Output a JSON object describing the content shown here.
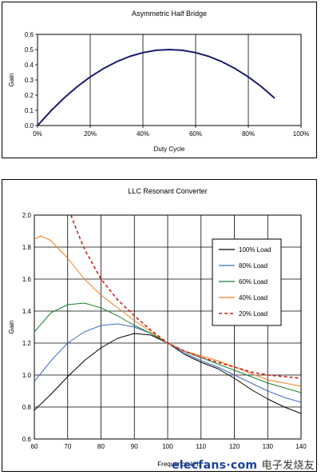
{
  "chart_data": [
    {
      "type": "line",
      "title": "Asymmetric Half Bridge",
      "xlabel": "Duty Cycle",
      "ylabel": "Gain",
      "xlim": [
        0,
        100
      ],
      "ylim": [
        0,
        0.6
      ],
      "x_ticks": [
        "0%",
        "20%",
        "40%",
        "60%",
        "80%",
        "100%"
      ],
      "y_ticks": [
        "0.0",
        "0.1",
        "0.2",
        "0.3",
        "0.4",
        "0.5",
        "0.6"
      ],
      "grid": "vertical",
      "series": [
        {
          "color": "#1a1a6e",
          "x": [
            0,
            5,
            10,
            15,
            20,
            25,
            30,
            35,
            40,
            45,
            50,
            55,
            60,
            65,
            70,
            75,
            80,
            85,
            90
          ],
          "y": [
            0,
            0.095,
            0.18,
            0.255,
            0.32,
            0.375,
            0.42,
            0.455,
            0.48,
            0.495,
            0.5,
            0.495,
            0.48,
            0.455,
            0.42,
            0.375,
            0.32,
            0.255,
            0.18
          ]
        }
      ]
    },
    {
      "type": "line",
      "title": "LLC Resonant Converter",
      "xlabel": "Frequency, kHz",
      "ylabel": "Gain",
      "xlim": [
        60,
        140
      ],
      "ylim": [
        0.6,
        2.0
      ],
      "x_ticks": [
        "60",
        "70",
        "80",
        "90",
        "100",
        "110",
        "120",
        "130",
        "140"
      ],
      "y_ticks": [
        "0.6",
        "0.8",
        "1.0",
        "1.2",
        "1.4",
        "1.6",
        "1.8",
        "2.0"
      ],
      "grid": "both",
      "legend_position": "right",
      "series": [
        {
          "name": "100% Load",
          "color": "#000000",
          "dash": "",
          "x": [
            60,
            65,
            70,
            75,
            80,
            85,
            90,
            95,
            100,
            105,
            110,
            115,
            120,
            125,
            130,
            135,
            140
          ],
          "y": [
            0.78,
            0.88,
            0.99,
            1.09,
            1.17,
            1.23,
            1.26,
            1.25,
            1.2,
            1.13,
            1.08,
            1.04,
            0.98,
            0.91,
            0.85,
            0.8,
            0.76
          ]
        },
        {
          "name": "80% Load",
          "color": "#3f6fc4",
          "dash": "",
          "x": [
            60,
            65,
            70,
            75,
            80,
            85,
            90,
            95,
            100,
            105,
            110,
            115,
            120,
            125,
            130,
            135,
            140
          ],
          "y": [
            0.96,
            1.09,
            1.2,
            1.27,
            1.31,
            1.32,
            1.3,
            1.26,
            1.2,
            1.14,
            1.09,
            1.05,
            1.0,
            0.95,
            0.9,
            0.86,
            0.83
          ]
        },
        {
          "name": "60% Load",
          "color": "#1f7f2f",
          "dash": "",
          "x": [
            60,
            65,
            70,
            75,
            80,
            85,
            90,
            95,
            100,
            105,
            110,
            115,
            120,
            125,
            130,
            135,
            140
          ],
          "y": [
            1.27,
            1.39,
            1.44,
            1.45,
            1.42,
            1.37,
            1.31,
            1.26,
            1.2,
            1.15,
            1.11,
            1.07,
            1.03,
            0.99,
            0.95,
            0.92,
            0.89
          ]
        },
        {
          "name": "40% Load",
          "color": "#f07f1a",
          "dash": "",
          "x": [
            60,
            62,
            65,
            70,
            75,
            80,
            85,
            90,
            95,
            100,
            105,
            110,
            115,
            120,
            125,
            130,
            135,
            140
          ],
          "y": [
            1.85,
            1.87,
            1.84,
            1.73,
            1.6,
            1.5,
            1.42,
            1.34,
            1.27,
            1.2,
            1.15,
            1.12,
            1.09,
            1.05,
            1.01,
            0.97,
            0.95,
            0.93
          ]
        },
        {
          "name": "20% Load",
          "color": "#cc1f1f",
          "dash": "4,3",
          "x": [
            71,
            73,
            75,
            80,
            85,
            90,
            95,
            100,
            105,
            110,
            115,
            120,
            125,
            130,
            135,
            140
          ],
          "y": [
            2.0,
            1.89,
            1.79,
            1.6,
            1.47,
            1.37,
            1.28,
            1.2,
            1.15,
            1.11,
            1.08,
            1.05,
            1.02,
            1.0,
            0.99,
            0.98
          ]
        }
      ]
    }
  ],
  "watermark": {
    "latin": "elecfans·com",
    "cjk": "电子发烧友"
  }
}
